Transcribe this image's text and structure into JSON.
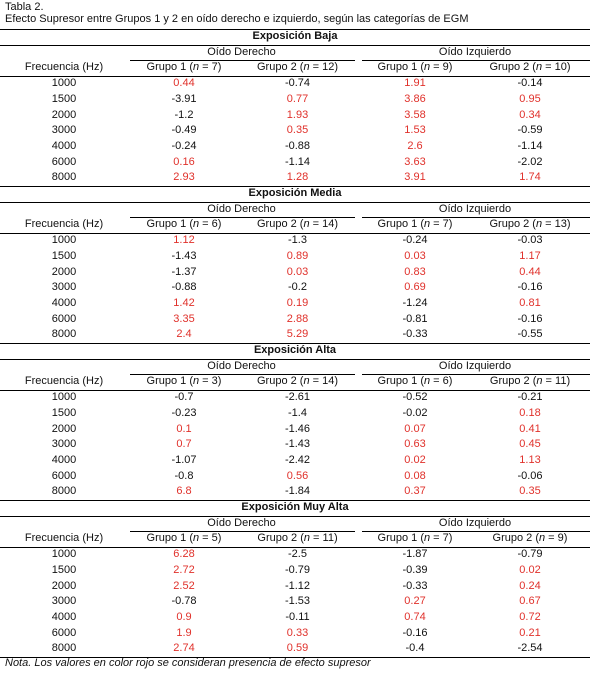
{
  "header": {
    "label": "Tabla 2.",
    "caption": "Efecto Supresor entre Grupos 1 y 2 en oído derecho e izquierdo, según las categorías de EGM"
  },
  "table": {
    "highlight_color": "#e0312b",
    "sections": [
      {
        "title": "Exposición Baja",
        "ear_headers": [
          "Oído Derecho",
          "Oído Izquierdo"
        ],
        "frequency_header": "Frecuencia (Hz)",
        "groups": [
          "Grupo 1 (n = 7)",
          "Grupo 2 (n = 12)",
          "Grupo 1 (n = 9)",
          "Grupo 2 (n = 10)"
        ],
        "rows": [
          [
            1000,
            0.44,
            -0.74,
            1.91,
            -0.14
          ],
          [
            1500,
            -3.91,
            0.77,
            3.86,
            0.95
          ],
          [
            2000,
            -1.2,
            1.93,
            3.58,
            0.34
          ],
          [
            3000,
            -0.49,
            0.35,
            1.53,
            -0.59
          ],
          [
            4000,
            -0.24,
            -0.88,
            2.6,
            -1.14
          ],
          [
            6000,
            0.16,
            -1.14,
            3.63,
            -2.02
          ],
          [
            8000,
            2.93,
            1.28,
            3.91,
            1.74
          ]
        ]
      },
      {
        "title": "Exposición Media",
        "ear_headers": [
          "Oído Derecho",
          "Oído Izquierdo"
        ],
        "frequency_header": "Frecuencia (Hz)",
        "groups": [
          "Grupo 1 (n = 6)",
          "Grupo 2 (n = 14)",
          "Grupo 1 (n = 7)",
          "Grupo 2 (n = 13)"
        ],
        "rows": [
          [
            1000,
            1.12,
            -1.3,
            -0.24,
            -0.03
          ],
          [
            1500,
            -1.43,
            0.89,
            0.03,
            1.17
          ],
          [
            2000,
            -1.37,
            0.03,
            0.83,
            0.44
          ],
          [
            3000,
            -0.88,
            -0.2,
            0.69,
            -0.16
          ],
          [
            4000,
            1.42,
            0.19,
            -1.24,
            0.81
          ],
          [
            6000,
            3.35,
            2.88,
            -0.81,
            -0.16
          ],
          [
            8000,
            2.4,
            5.29,
            -0.33,
            -0.55
          ]
        ]
      },
      {
        "title": "Exposición Alta",
        "ear_headers": [
          "Oído Derecho",
          "Oído Izquierdo"
        ],
        "frequency_header": "Frecuencia (Hz)",
        "groups": [
          "Grupo 1 (n = 3)",
          "Grupo 2 (n = 14)",
          "Grupo 1 (n = 6)",
          "Grupo 2 (n = 11)"
        ],
        "rows": [
          [
            1000,
            -0.7,
            -2.61,
            -0.52,
            -0.21
          ],
          [
            1500,
            -0.23,
            -1.4,
            -0.02,
            0.18
          ],
          [
            2000,
            0.1,
            -1.46,
            0.07,
            0.41
          ],
          [
            3000,
            0.7,
            -1.43,
            0.63,
            0.45
          ],
          [
            4000,
            -1.07,
            -2.42,
            0.02,
            1.13
          ],
          [
            6000,
            -0.8,
            0.56,
            0.08,
            -0.06
          ],
          [
            8000,
            6.8,
            -1.84,
            0.37,
            0.35
          ]
        ]
      },
      {
        "title": "Exposición Muy Alta",
        "ear_headers": [
          "Oído Derecho",
          "Oído Izquierdo"
        ],
        "frequency_header": "Frecuencia (Hz)",
        "groups": [
          "Grupo 1 (n = 5)",
          "Grupo 2 (n = 11)",
          "Grupo 1 (n = 7)",
          "Grupo 2 (n = 9)"
        ],
        "rows": [
          [
            1000,
            6.28,
            -2.5,
            -1.87,
            -0.79
          ],
          [
            1500,
            2.72,
            -0.79,
            -0.39,
            0.02
          ],
          [
            2000,
            2.52,
            -1.12,
            -0.33,
            0.24
          ],
          [
            3000,
            -0.78,
            -1.53,
            0.27,
            0.67
          ],
          [
            4000,
            0.9,
            -0.11,
            0.74,
            0.72
          ],
          [
            6000,
            1.9,
            0.33,
            -0.16,
            0.21
          ],
          [
            8000,
            2.74,
            0.59,
            -0.4,
            -2.54
          ]
        ]
      }
    ]
  },
  "note": "Nota. Los valores en color rojo se consideran presencia de efecto supresor"
}
